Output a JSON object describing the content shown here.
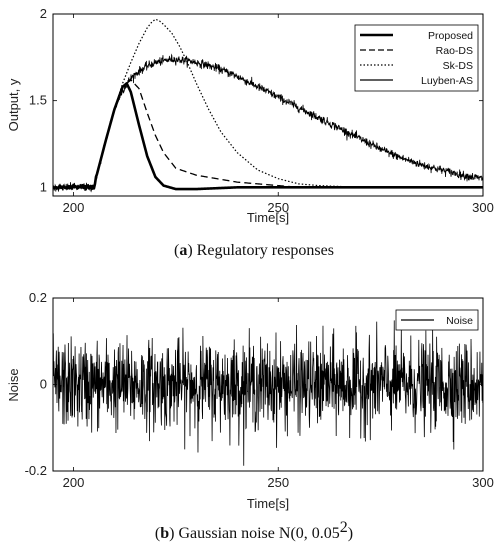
{
  "captions": {
    "a_letter": "a",
    "a_text": "Regulatory responses",
    "b_letter": "b",
    "b_text": "Gaussian noise N(0, 0.05",
    "b_sup": "2",
    "b_close": ")"
  },
  "chart_data": [
    {
      "type": "line",
      "xlabel": "Time[s]",
      "ylabel": "Output, y",
      "xlim": [
        195,
        300
      ],
      "ylim": [
        0.95,
        2.0
      ],
      "xticks": [
        "200",
        "250",
        "300"
      ],
      "yticks": [
        "1",
        "1.5",
        "2"
      ],
      "legend_position": "top-right",
      "series": [
        {
          "name": "Proposed",
          "style": "solid-thick",
          "color": "#000000",
          "x": [
            195,
            205,
            206,
            208,
            210,
            212,
            213,
            214,
            216,
            218,
            220,
            222,
            225,
            230,
            240,
            250,
            260,
            280,
            300
          ],
          "values": [
            1.0,
            1.0,
            1.1,
            1.28,
            1.45,
            1.58,
            1.6,
            1.55,
            1.36,
            1.18,
            1.06,
            1.01,
            0.99,
            0.99,
            1.0,
            1.0,
            1.0,
            1.0,
            1.0
          ]
        },
        {
          "name": "Rao-DS",
          "style": "dashed",
          "color": "#000000",
          "x": [
            195,
            205,
            206,
            208,
            210,
            212,
            214,
            216,
            218,
            220,
            222,
            225,
            230,
            235,
            240,
            245,
            250,
            255,
            260,
            280,
            300
          ],
          "values": [
            1.0,
            1.0,
            1.1,
            1.28,
            1.45,
            1.58,
            1.62,
            1.57,
            1.43,
            1.3,
            1.2,
            1.11,
            1.07,
            1.05,
            1.03,
            1.02,
            1.01,
            1.0,
            1.0,
            1.0,
            1.0
          ]
        },
        {
          "name": "Sk-DS",
          "style": "dotted",
          "color": "#000000",
          "x": [
            195,
            205,
            206,
            208,
            210,
            212,
            214,
            216,
            218,
            219,
            220,
            221,
            222,
            224,
            226,
            228,
            230,
            233,
            236,
            240,
            245,
            250,
            255,
            260,
            270,
            280,
            300
          ],
          "values": [
            1.0,
            1.0,
            1.1,
            1.28,
            1.45,
            1.6,
            1.72,
            1.83,
            1.92,
            1.95,
            1.97,
            1.96,
            1.94,
            1.89,
            1.81,
            1.71,
            1.6,
            1.45,
            1.32,
            1.2,
            1.1,
            1.05,
            1.02,
            1.01,
            1.0,
            1.0,
            1.0
          ]
        },
        {
          "name": "Luyben-AS",
          "style": "solid-noisy",
          "color": "#000000",
          "x": [
            195,
            205,
            206,
            208,
            210,
            212,
            214,
            216,
            218,
            220,
            224,
            228,
            232,
            236,
            240,
            245,
            250,
            255,
            260,
            265,
            270,
            275,
            280,
            285,
            290,
            295,
            300
          ],
          "values": [
            1.0,
            1.0,
            1.1,
            1.28,
            1.45,
            1.56,
            1.63,
            1.67,
            1.7,
            1.72,
            1.74,
            1.73,
            1.71,
            1.68,
            1.64,
            1.58,
            1.52,
            1.46,
            1.4,
            1.34,
            1.28,
            1.22,
            1.17,
            1.13,
            1.1,
            1.07,
            1.05
          ]
        }
      ]
    },
    {
      "type": "line",
      "xlabel": "Time[s]",
      "ylabel": "Noise",
      "xlim": [
        195,
        300
      ],
      "ylim": [
        -0.2,
        0.2
      ],
      "xticks": [
        "200",
        "250",
        "300"
      ],
      "yticks": [
        "-0.2",
        "0",
        "0.2"
      ],
      "legend_position": "top-right",
      "series": [
        {
          "name": "Noise",
          "style": "solid-noisy",
          "color": "#000000",
          "mean": 0.0,
          "std": 0.05
        }
      ]
    }
  ]
}
